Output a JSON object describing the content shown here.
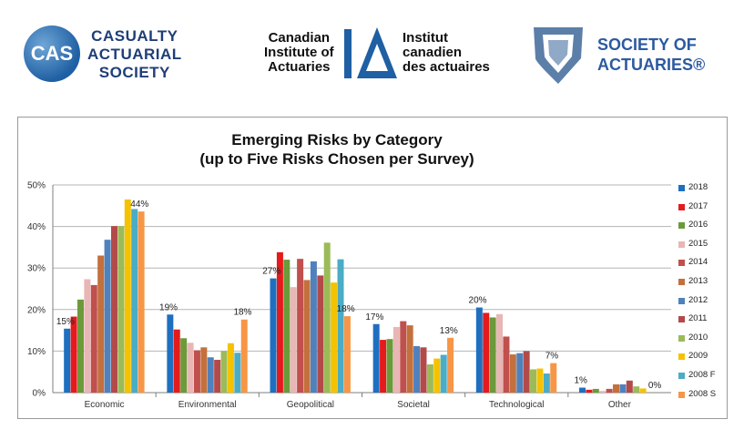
{
  "logos": {
    "cas": {
      "mark": "CAS",
      "lines": [
        "CASUALTY",
        "ACTUARIAL",
        "SOCIETY"
      ]
    },
    "cia": {
      "en_lines": [
        "Canadian",
        "Institute of",
        "Actuaries"
      ],
      "fr_lines": [
        "Institut",
        "canadien",
        "des actuaires"
      ]
    },
    "soa": {
      "lines": [
        "SOCIETY OF",
        "ACTUARIES®"
      ]
    }
  },
  "colors": {
    "2018": "#1f6fc0",
    "2017": "#e41a1c",
    "2016": "#6b9a3a",
    "2015": "#e8b6b4",
    "2014": "#c0504d",
    "2013": "#c4703c",
    "2012": "#4f81bd",
    "2011": "#b34a4a",
    "2010": "#9bbb59",
    "2009": "#f5c200",
    "2008 F": "#4bacc6",
    "2008 S": "#f79646"
  },
  "chart_data": {
    "type": "bar",
    "title": "Emerging Risks by Category",
    "subtitle": "(up to Five Risks Chosen per Survey)",
    "categories": [
      "Economic",
      "Environmental",
      "Geopolitical",
      "Societal",
      "Technological",
      "Other"
    ],
    "ylim": [
      0,
      50
    ],
    "yticks": [
      "0%",
      "10%",
      "20%",
      "30%",
      "40%",
      "50%"
    ],
    "grid": true,
    "legend_position": "right",
    "series": [
      {
        "name": "2018",
        "values": [
          15.4,
          18.8,
          27.5,
          16.5,
          20.5,
          1.2
        ]
      },
      {
        "name": "2017",
        "values": [
          18.3,
          15.2,
          33.8,
          12.7,
          19.2,
          0.7
        ]
      },
      {
        "name": "2016",
        "values": [
          22.4,
          13.1,
          32.0,
          12.9,
          18.1,
          0.9
        ]
      },
      {
        "name": "2015",
        "values": [
          27.3,
          12.0,
          25.4,
          15.8,
          18.9,
          0.4
        ]
      },
      {
        "name": "2014",
        "values": [
          25.9,
          10.2,
          32.2,
          17.2,
          13.5,
          0.9
        ]
      },
      {
        "name": "2013",
        "values": [
          33.0,
          10.9,
          27.1,
          16.2,
          9.2,
          2.0
        ]
      },
      {
        "name": "2012",
        "values": [
          36.8,
          8.5,
          31.6,
          11.2,
          9.5,
          2.0
        ]
      },
      {
        "name": "2011",
        "values": [
          40.1,
          7.9,
          28.2,
          10.9,
          10.0,
          2.9
        ]
      },
      {
        "name": "2010",
        "values": [
          40.1,
          10.0,
          36.1,
          6.8,
          5.6,
          1.5
        ]
      },
      {
        "name": "2009",
        "values": [
          46.5,
          11.9,
          26.5,
          8.2,
          5.8,
          1.0
        ]
      },
      {
        "name": "2008 F",
        "values": [
          44.2,
          9.6,
          32.1,
          9.1,
          4.6,
          0.0
        ]
      },
      {
        "name": "2008 S",
        "values": [
          43.6,
          17.6,
          18.4,
          13.2,
          7.1,
          0.0
        ]
      }
    ],
    "data_labels": [
      [
        "15%",
        "44%"
      ],
      [
        "19%",
        "18%"
      ],
      [
        "27%",
        "18%"
      ],
      [
        "17%",
        "13%"
      ],
      [
        "20%",
        "7%"
      ],
      [
        "1%",
        "0%"
      ]
    ]
  }
}
